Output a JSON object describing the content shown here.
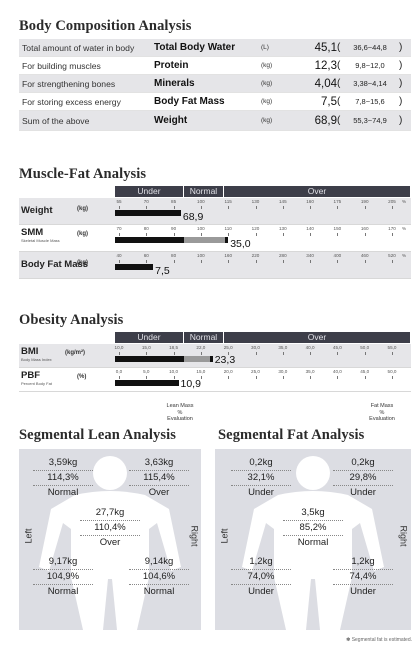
{
  "body_composition": {
    "title": "Body Composition Analysis",
    "rows": [
      {
        "desc": "Total amount of water in body",
        "name": "Total Body Water",
        "unit": "(L)",
        "value": "45,1",
        "range": "36,6~44,8"
      },
      {
        "desc": "For building muscles",
        "name": "Protein",
        "unit": "(kg)",
        "value": "12,3",
        "range": "9,8~12,0"
      },
      {
        "desc": "For strengthening bones",
        "name": "Minerals",
        "unit": "(kg)",
        "value": "4,04",
        "range": "3,38~4,14"
      },
      {
        "desc": "For storing excess energy",
        "name": "Body Fat Mass",
        "unit": "(kg)",
        "value": "7,5",
        "range": "7,8~15,6"
      },
      {
        "desc": "Sum of the above",
        "name": "Weight",
        "unit": "(kg)",
        "value": "68,9",
        "range": "55,3~74,9"
      }
    ]
  },
  "muscle_fat": {
    "title": "Muscle-Fat Analysis",
    "headers": [
      "Under",
      "Normal",
      "Over"
    ],
    "rows": [
      {
        "label": "Weight",
        "sub": "",
        "unit": "(kg)",
        "ticks": [
          "55",
          "70",
          "85",
          "100",
          "115",
          "130",
          "145",
          "160",
          "175",
          "190",
          "205"
        ],
        "pct": "%",
        "value": "68,9",
        "fill_pct": 89
      },
      {
        "label": "SMM",
        "sub": "Skeletal Muscle Mass",
        "unit": "(kg)",
        "ticks": [
          "70",
          "80",
          "90",
          "100",
          "110",
          "120",
          "130",
          "140",
          "150",
          "160",
          "170"
        ],
        "pct": "%",
        "value": "35,0",
        "fill_pct": 110
      },
      {
        "label": "Body Fat Mass",
        "sub": "",
        "unit": "(kg)",
        "ticks": [
          "40",
          "60",
          "80",
          "100",
          "160",
          "220",
          "280",
          "340",
          "400",
          "460",
          "520"
        ],
        "pct": "%",
        "value": "7,5",
        "fill_pct": 65
      }
    ]
  },
  "obesity": {
    "title": "Obesity Analysis",
    "headers": [
      "Under",
      "Normal",
      "Over"
    ],
    "rows": [
      {
        "label": "BMI",
        "sub": "Body Mass Index",
        "unit": "(kg/m²)",
        "ticks": [
          "10,0",
          "15,0",
          "18,5",
          "22,0",
          "25,0",
          "30,0",
          "35,0",
          "40,0",
          "45,0",
          "50,0",
          "55,0"
        ],
        "pct": "",
        "value": "23,3",
        "fill_value": 23.3
      },
      {
        "label": "PBF",
        "sub": "Percent Body Fat",
        "unit": "(%)",
        "ticks": [
          "0,0",
          "5,0",
          "10,0",
          "15,0",
          "20,0",
          "25,0",
          "30,0",
          "35,0",
          "40,0",
          "45,0",
          "50,0"
        ],
        "pct": "",
        "value": "10,9",
        "fill_value": 10.9
      }
    ]
  },
  "eval_key_lean": [
    "Lean Mass",
    "%",
    "Evaluation"
  ],
  "eval_key_fat": [
    "Fat Mass",
    "%",
    "Evaluation"
  ],
  "segmental_lean": {
    "title": "Segmental Lean Analysis",
    "left_label": "Left",
    "right_label": "Right",
    "left_arm": {
      "mass": "3,59kg",
      "pct": "114,3%",
      "eval": "Normal"
    },
    "right_arm": {
      "mass": "3,63kg",
      "pct": "115,4%",
      "eval": "Over"
    },
    "trunk": {
      "mass": "27,7kg",
      "pct": "110,4%",
      "eval": "Over"
    },
    "left_leg": {
      "mass": "9,17kg",
      "pct": "104,9%",
      "eval": "Normal"
    },
    "right_leg": {
      "mass": "9,14kg",
      "pct": "104,6%",
      "eval": "Normal"
    }
  },
  "segmental_fat": {
    "title": "Segmental Fat Analysis",
    "left_label": "Left",
    "right_label": "Right",
    "left_arm": {
      "mass": "0,2kg",
      "pct": "32,1%",
      "eval": "Under"
    },
    "right_arm": {
      "mass": "0,2kg",
      "pct": "29,8%",
      "eval": "Under"
    },
    "trunk": {
      "mass": "3,5kg",
      "pct": "85,2%",
      "eval": "Normal"
    },
    "left_leg": {
      "mass": "1,2kg",
      "pct": "74,0%",
      "eval": "Under"
    },
    "right_leg": {
      "mass": "1,2kg",
      "pct": "74,4%",
      "eval": "Under"
    }
  },
  "footnote": "✽ Segmental fat is estimated.",
  "colors": {
    "header_bg": "#3d3e49",
    "bar_black": "#111111",
    "bar_gray": "#9a9a9a",
    "panel_bg": "#dcdde3"
  }
}
